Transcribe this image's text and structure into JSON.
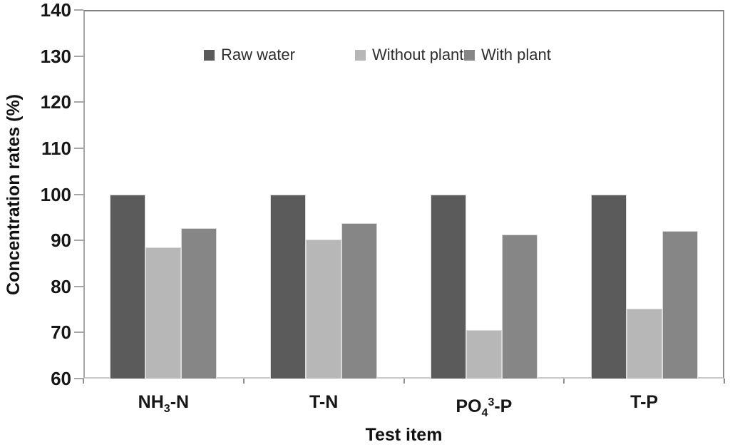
{
  "chart_data": {
    "type": "bar",
    "title": "",
    "xlabel": "Test item",
    "ylabel": "Concentration rates (%)",
    "ylim": [
      60,
      140
    ],
    "ytick_step": 10,
    "ytick_labels": [
      "140",
      "130",
      "120",
      "110",
      "100",
      "90",
      "80",
      "70",
      "60"
    ],
    "grid": false,
    "legend_position": "top-center",
    "legend_entries": [
      "Raw water",
      "Without plant",
      "With plant"
    ],
    "categories": [
      {
        "label": "NH3-N",
        "parts": [
          [
            "t",
            "NH"
          ],
          [
            "sub",
            "3"
          ],
          [
            "t",
            "-N"
          ]
        ]
      },
      {
        "label": "T-N",
        "parts": [
          [
            "t",
            "T-N"
          ]
        ]
      },
      {
        "label": "PO43-P",
        "parts": [
          [
            "t",
            "PO"
          ],
          [
            "sub",
            "4"
          ],
          [
            "sup",
            "3"
          ],
          [
            "t",
            "-P"
          ]
        ]
      },
      {
        "label": "T-P",
        "parts": [
          [
            "t",
            "T-P"
          ]
        ]
      }
    ],
    "series": [
      {
        "name": "Raw water",
        "color": "#5b5b5b",
        "values": [
          100,
          100,
          100,
          100
        ]
      },
      {
        "name": "Without plant",
        "color": "#b7b7b7",
        "values": [
          88.5,
          90.2,
          70.5,
          75.2
        ]
      },
      {
        "name": "With plant",
        "color": "#868686",
        "values": [
          92.6,
          93.8,
          91.2,
          92.0
        ]
      }
    ],
    "colors": {
      "axis_line": "#a6a6a6",
      "plot_border": "#8a8a8a",
      "bottom_axis": "#c9c9c9",
      "text": "#171717"
    }
  }
}
